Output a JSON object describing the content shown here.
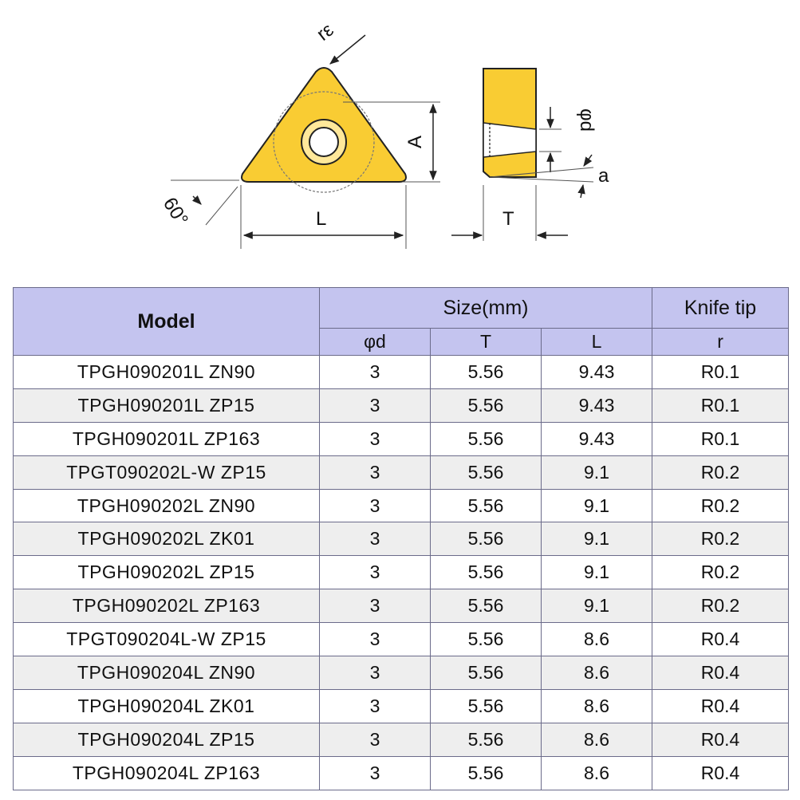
{
  "diagram": {
    "labels": {
      "r_epsilon": "rε",
      "A": "A",
      "L": "L",
      "angle": "60°",
      "phi_d": "φd",
      "T": "T",
      "a": "a"
    },
    "colors": {
      "insert": "#f9cc33",
      "outline": "#222222"
    }
  },
  "table": {
    "headers": {
      "model": "Model",
      "size": "Size(mm)",
      "knife_tip": "Knife tip",
      "phi_d": "φd",
      "T": "T",
      "L": "L",
      "r": "r"
    },
    "rows": [
      {
        "model": "TPGH090201L ZN90",
        "d": "3",
        "T": "5.56",
        "L": "9.43",
        "r": "R0.1"
      },
      {
        "model": "TPGH090201L ZP15",
        "d": "3",
        "T": "5.56",
        "L": "9.43",
        "r": "R0.1"
      },
      {
        "model": "TPGH090201L ZP163",
        "d": "3",
        "T": "5.56",
        "L": "9.43",
        "r": "R0.1"
      },
      {
        "model": "TPGT090202L-W ZP15",
        "d": "3",
        "T": "5.56",
        "L": "9.1",
        "r": "R0.2"
      },
      {
        "model": "TPGH090202L ZN90",
        "d": "3",
        "T": "5.56",
        "L": "9.1",
        "r": "R0.2"
      },
      {
        "model": "TPGH090202L ZK01",
        "d": "3",
        "T": "5.56",
        "L": "9.1",
        "r": "R0.2"
      },
      {
        "model": "TPGH090202L ZP15",
        "d": "3",
        "T": "5.56",
        "L": "9.1",
        "r": "R0.2"
      },
      {
        "model": "TPGH090202L ZP163",
        "d": "3",
        "T": "5.56",
        "L": "9.1",
        "r": "R0.2"
      },
      {
        "model": "TPGT090204L-W ZP15",
        "d": "3",
        "T": "5.56",
        "L": "8.6",
        "r": "R0.4"
      },
      {
        "model": "TPGH090204L ZN90",
        "d": "3",
        "T": "5.56",
        "L": "8.6",
        "r": "R0.4"
      },
      {
        "model": "TPGH090204L ZK01",
        "d": "3",
        "T": "5.56",
        "L": "8.6",
        "r": "R0.4"
      },
      {
        "model": "TPGH090204L ZP15",
        "d": "3",
        "T": "5.56",
        "L": "8.6",
        "r": "R0.4"
      },
      {
        "model": "TPGH090204L ZP163",
        "d": "3",
        "T": "5.56",
        "L": "8.6",
        "r": "R0.4"
      }
    ]
  }
}
